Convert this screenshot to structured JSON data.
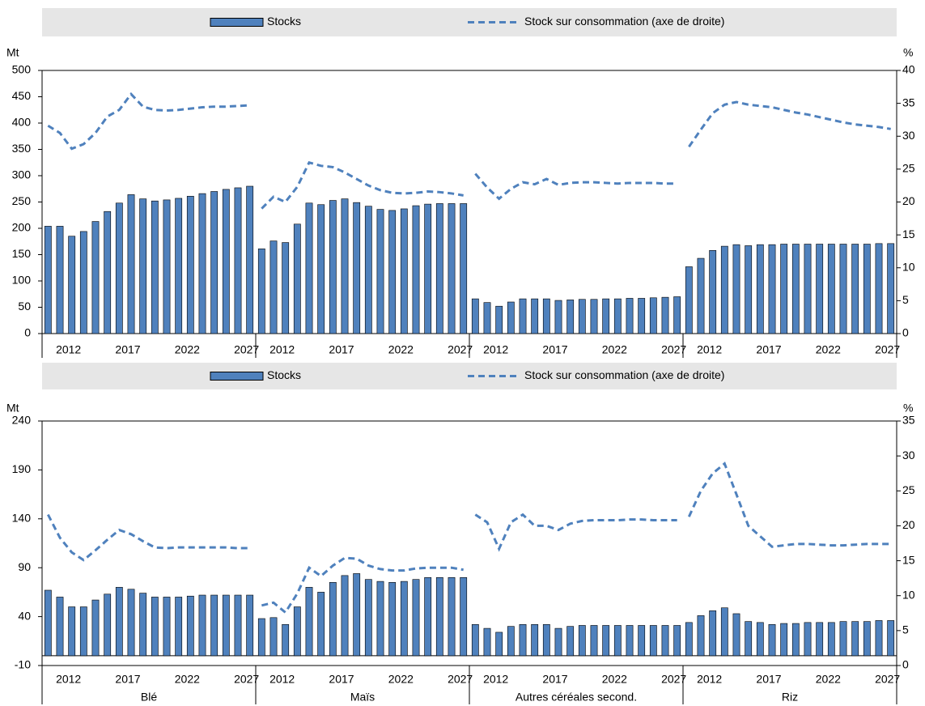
{
  "chart_data": [
    {
      "type": "bar_line",
      "y_label": "Mt",
      "y2_label": "%",
      "groups": [
        "Blé",
        "Maïs",
        "Autres céréales second.",
        "Riz"
      ],
      "categories": [
        null,
        null,
        "2012",
        null,
        null,
        null,
        null,
        "2017",
        null,
        null,
        null,
        null,
        "2022",
        null,
        null,
        null,
        null,
        "2027"
      ],
      "ylim": [
        0,
        500
      ],
      "yticks": [
        0,
        50,
        100,
        150,
        200,
        250,
        300,
        350,
        400,
        450,
        500
      ],
      "y2lim": [
        0,
        40
      ],
      "y2ticks": [
        0,
        5,
        10,
        15,
        20,
        25,
        30,
        35,
        40
      ],
      "series": [
        {
          "name": "Stocks",
          "type": "bar",
          "color": "#4f81bd",
          "values": [
            [
              204,
              204,
              185,
              194,
              213,
              232,
              248,
              264,
              256,
              252,
              254,
              257,
              261,
              266,
              270,
              274,
              277,
              280
            ],
            [
              161,
              176,
              173,
              208,
              248,
              245,
              253,
              256,
              249,
              242,
              236,
              234,
              237,
              243,
              246,
              247,
              247,
              247
            ],
            [
              66,
              59,
              52,
              60,
              66,
              66,
              66,
              63,
              64,
              65,
              65,
              66,
              66,
              67,
              67,
              68,
              69,
              70
            ],
            [
              127,
              143,
              158,
              166,
              169,
              167,
              169,
              169,
              170,
              170,
              170,
              170,
              170,
              170,
              170,
              170,
              171,
              171
            ]
          ]
        },
        {
          "name": "Stock sur consommation (axe de droite)",
          "type": "line",
          "style": "dashed",
          "axis": "y2",
          "color": "#4f81bd",
          "values": [
            [
              31.6,
              30.5,
              28.1,
              28.8,
              30.5,
              33,
              34,
              36.4,
              34.5,
              34,
              33.9,
              34,
              34.2,
              34.4,
              34.5,
              34.5,
              34.6,
              34.7
            ],
            [
              19,
              20.8,
              20,
              22.3,
              26,
              25.5,
              25.3,
              24.5,
              23.5,
              22.5,
              21.8,
              21.4,
              21.3,
              21.4,
              21.6,
              21.5,
              21.3,
              21
            ],
            [
              24.3,
              22.2,
              20.5,
              22,
              23,
              22.7,
              23.5,
              22.6,
              22.9,
              23,
              23,
              22.9,
              22.8,
              22.9,
              22.9,
              22.9,
              22.8,
              22.8
            ],
            [
              28.4,
              31,
              33.5,
              34.8,
              35.2,
              34.8,
              34.6,
              34.4,
              34,
              33.6,
              33.3,
              32.9,
              32.5,
              32.1,
              31.8,
              31.6,
              31.4,
              31.1
            ]
          ]
        }
      ]
    },
    {
      "type": "bar_line",
      "y_label": "Mt",
      "y2_label": "%",
      "groups": [
        "Blé",
        "Maïs",
        "Autres céréales second.",
        "Riz"
      ],
      "categories": [
        null,
        null,
        "2012",
        null,
        null,
        null,
        null,
        "2017",
        null,
        null,
        null,
        null,
        "2022",
        null,
        null,
        null,
        null,
        "2027"
      ],
      "ylim": [
        -10,
        240
      ],
      "yticks": [
        -10,
        40,
        90,
        140,
        190,
        240
      ],
      "y2lim": [
        0,
        35
      ],
      "y2ticks": [
        0,
        5,
        10,
        15,
        20,
        25,
        30,
        35
      ],
      "series": [
        {
          "name": "Stocks",
          "type": "bar",
          "color": "#4f81bd",
          "values": [
            [
              67,
              60,
              50,
              50,
              57,
              63,
              70,
              68,
              64,
              60,
              60,
              60,
              61,
              62,
              62,
              62,
              62,
              62
            ],
            [
              38,
              39,
              32,
              50,
              70,
              65,
              75,
              82,
              84,
              78,
              76,
              75,
              76,
              78,
              80,
              80,
              80,
              80
            ],
            [
              32,
              28,
              24,
              30,
              32,
              32,
              32,
              28,
              30,
              31,
              31,
              31,
              31,
              31,
              31,
              31,
              31,
              31
            ],
            [
              34,
              41,
              46,
              49,
              43,
              35,
              34,
              32,
              33,
              33,
              34,
              34,
              34,
              35,
              35,
              35,
              36,
              36
            ]
          ]
        },
        {
          "name": "Stock sur consommation (axe de droite)",
          "type": "line",
          "style": "dashed",
          "axis": "y2",
          "color": "#4f81bd",
          "values": [
            [
              21.6,
              18.3,
              16.2,
              15.1,
              16.5,
              18,
              19.4,
              18.8,
              17.8,
              16.9,
              16.8,
              16.9,
              16.9,
              16.9,
              16.9,
              16.9,
              16.8,
              16.8
            ],
            [
              8.6,
              9,
              7.6,
              10.3,
              14,
              12.8,
              14.3,
              15.4,
              15.3,
              14.3,
              13.8,
              13.6,
              13.6,
              13.9,
              14,
              14,
              14,
              13.7
            ],
            [
              21.6,
              20.5,
              16.7,
              20.5,
              21.6,
              20,
              20,
              19.4,
              20.3,
              20.7,
              20.8,
              20.8,
              20.8,
              20.9,
              20.9,
              20.8,
              20.8,
              20.8
            ],
            [
              21.3,
              25,
              27.5,
              28.9,
              24.5,
              20,
              18.5,
              17,
              17.2,
              17.4,
              17.4,
              17.3,
              17.2,
              17.2,
              17.3,
              17.4,
              17.4,
              17.4
            ]
          ]
        }
      ]
    }
  ]
}
